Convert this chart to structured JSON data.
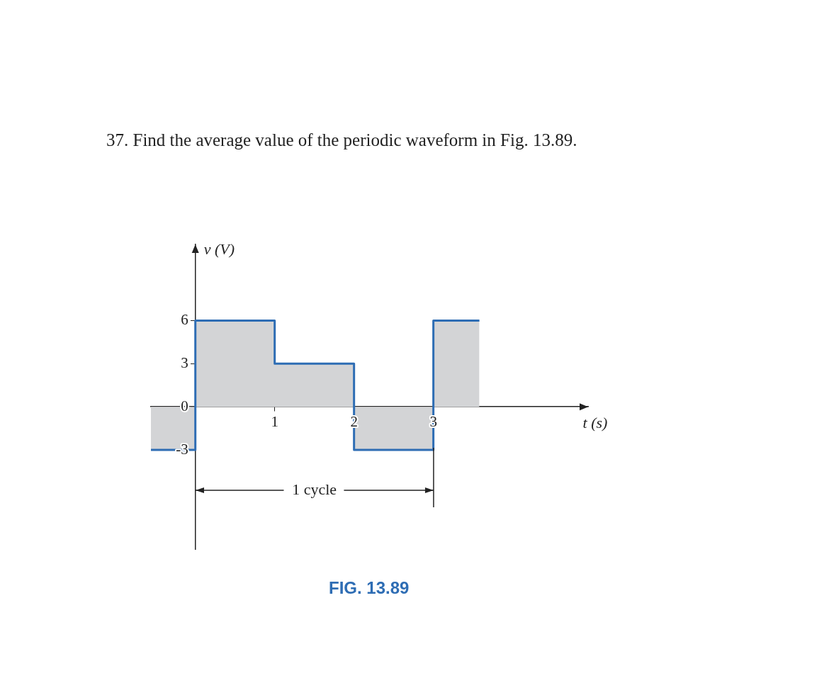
{
  "chart_data": {
    "type": "step",
    "title": "37. Find the average value of the periodic waveform in Fig. 13.89.",
    "xlabel": "t (s)",
    "ylabel": "v (V)",
    "annotations": [
      "1 cycle",
      "FIG. 13.89"
    ],
    "x": [
      -0.56,
      0,
      1,
      2,
      3,
      3.58
    ],
    "series": [
      {
        "color": "#2e6db4",
        "values": [
          -3,
          6,
          3,
          -3,
          6,
          6
        ]
      }
    ],
    "xlim": [
      -0.56,
      4.95
    ],
    "ylim": [
      -9.9,
      11.3
    ],
    "xticks": [
      1,
      2,
      3
    ],
    "yticks": [
      -3,
      0,
      3,
      6
    ],
    "grid": false,
    "legend": false
  }
}
